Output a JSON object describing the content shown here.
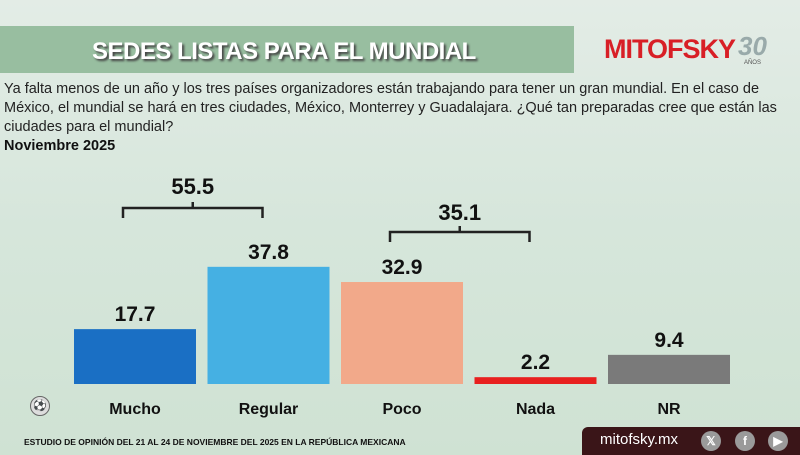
{
  "header": {
    "title": "SEDES LISTAS PARA EL MUNDIAL",
    "logo": "MITOFSKY",
    "logo_badge": "30",
    "logo_badge_sub": "AÑOS"
  },
  "question": "Ya falta menos de un año y los tres países organizadores están trabajando para tener un gran mundial. En el caso de México, el mundial se hará en tres ciudades, México, Monterrey y Guadalajara. ¿Qué tan preparadas cree que están las ciudades para el mundial?",
  "date": "Noviembre 2025",
  "chart_data": {
    "type": "bar",
    "title": "",
    "xlabel": "",
    "ylabel": "",
    "ylim": [
      0,
      40
    ],
    "grid": false,
    "categories": [
      "Mucho",
      "Regular",
      "Poco",
      "Nada",
      "NR"
    ],
    "values": [
      17.7,
      37.8,
      32.9,
      2.2,
      9.4
    ],
    "colors": [
      "#1a6fc4",
      "#45b0e3",
      "#f2a98a",
      "#e8201f",
      "#7a7a7a"
    ],
    "annotations": [
      {
        "label": "55.5",
        "spans": [
          "Mucho",
          "Regular"
        ]
      },
      {
        "label": "35.1",
        "spans": [
          "Poco",
          "Nada"
        ]
      }
    ]
  },
  "footer": {
    "text": "ESTUDIO DE OPINIÓN DEL 21 AL 24 DE NOVIEMBRE DEL 2025 EN LA REPÚBLICA MEXICANA",
    "site": "mitofsky.mx",
    "social": [
      "x-icon",
      "facebook-icon",
      "youtube-icon"
    ]
  }
}
